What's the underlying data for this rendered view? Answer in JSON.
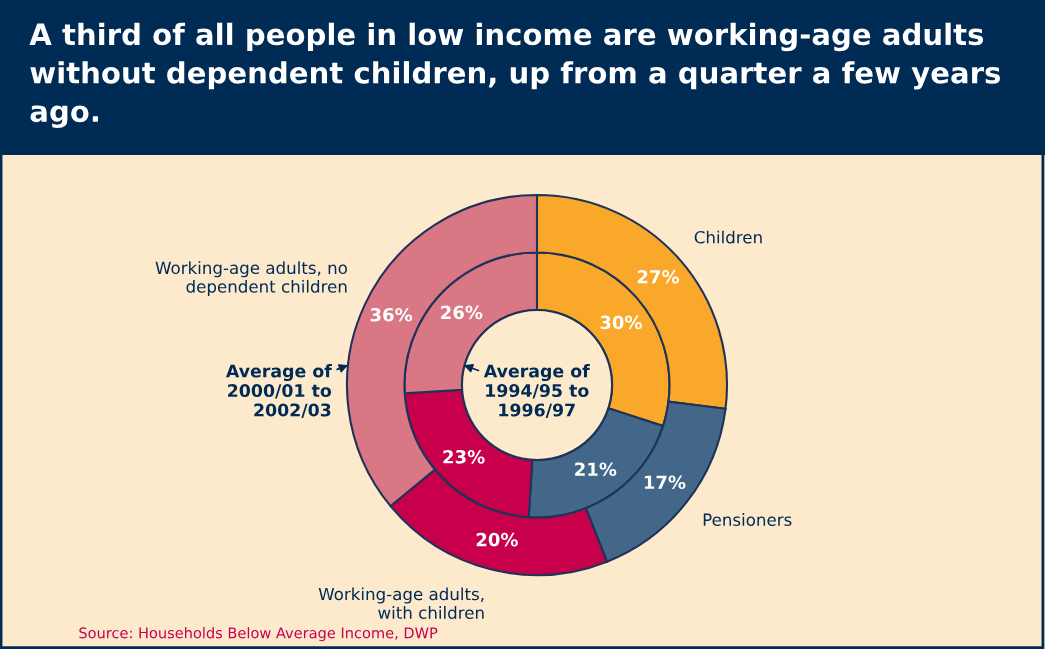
{
  "chart_data": {
    "type": "donut",
    "title": "A third of all people in low income are working-age adults without dependent children, up from a quarter a few years ago.",
    "categories": [
      "Children",
      "Pensioners",
      "Working-age adults,\nwith children",
      "Working-age adults, no\ndependent children"
    ],
    "colors": [
      "#f9a82a",
      "#426789",
      "#c8004b",
      "#d97784"
    ],
    "series": [
      {
        "name": "Average of\n1994/95 to\n1996/97",
        "values": [
          30,
          21,
          23,
          26
        ],
        "value_labels": [
          "30%",
          "21%",
          "23%",
          "26%"
        ]
      },
      {
        "name": "Average of\n2000/01 to\n2002/03",
        "values": [
          27,
          17,
          20,
          36
        ],
        "value_labels": [
          "27%",
          "17%",
          "20%",
          "36%"
        ]
      }
    ],
    "annotations": [
      "Source: Households Below Average Income, DWP"
    ]
  }
}
